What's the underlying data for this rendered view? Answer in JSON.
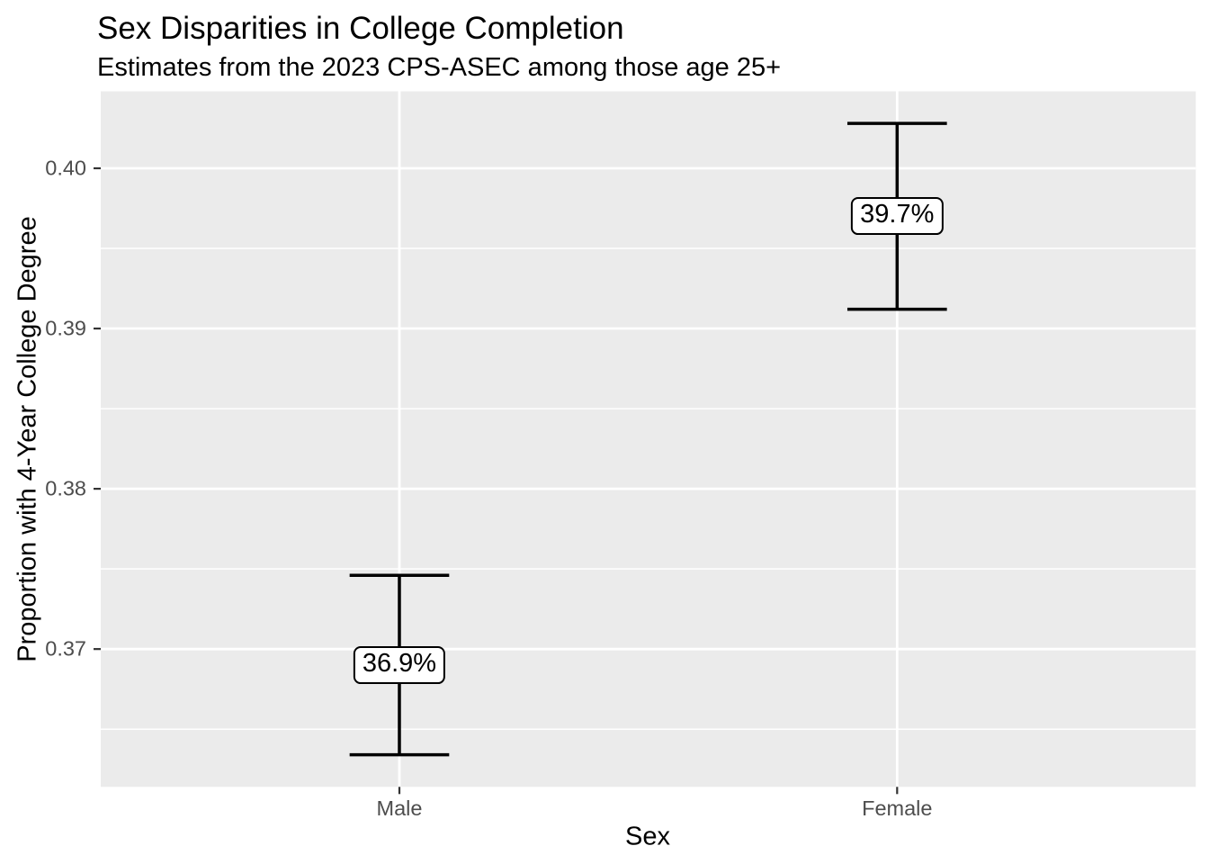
{
  "chart_data": {
    "type": "errorbar",
    "title": "Sex Disparities in College Completion",
    "subtitle": "Estimates from the 2023 CPS-ASEC among those age 25+",
    "xlabel": "Sex",
    "ylabel": "Proportion with 4-Year College Degree",
    "categories": [
      "Male",
      "Female"
    ],
    "points": [
      {
        "category": "Male",
        "estimate": 0.369,
        "label": "36.9%",
        "ci_low": 0.3634,
        "ci_high": 0.3746
      },
      {
        "category": "Female",
        "estimate": 0.397,
        "label": "39.7%",
        "ci_low": 0.3912,
        "ci_high": 0.4028
      }
    ],
    "ylim": [
      0.3614,
      0.4048
    ],
    "yticks": [
      {
        "value": 0.4,
        "label": "0.40"
      },
      {
        "value": 0.39,
        "label": "0.39"
      },
      {
        "value": 0.38,
        "label": "0.38"
      },
      {
        "value": 0.37,
        "label": "0.37"
      }
    ],
    "yticks_minor": [
      0.395,
      0.385,
      0.375,
      0.365
    ],
    "grid": "major+minor",
    "legend": false,
    "colors": {
      "page_bg": "#FFFFFF",
      "panel_bg": "#EBEBEB",
      "grid": "#FFFFFF",
      "tick_label": "#4D4D4D",
      "tick_mark": "#333333",
      "text": "#000000",
      "errorbar": "#000000",
      "label_bg": "#FFFFFF",
      "label_border": "#000000"
    }
  }
}
